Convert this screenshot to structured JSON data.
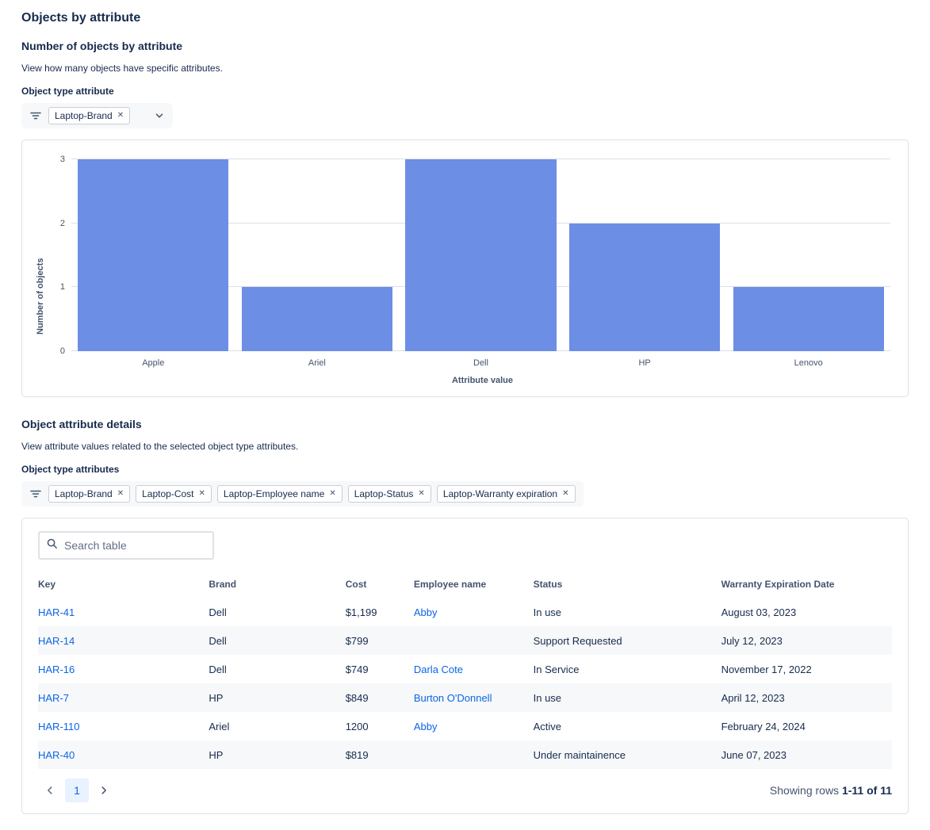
{
  "page": {
    "title": "Objects by attribute"
  },
  "colors": {
    "accent_blue": "#0C66E4",
    "bar_fill": "#6C8EE4",
    "selected_page_bg": "#E9F2FF",
    "zebra_row_bg": "#F7F8F9",
    "text_primary": "#172B4D",
    "text_secondary": "#44546F",
    "border": "#DFE1E6"
  },
  "icons": {
    "remove": "✕"
  },
  "section_chart": {
    "heading": "Number of objects by attribute",
    "description": "View how many objects have specific attributes.",
    "filter_label": "Object type attribute",
    "filter_tags": [
      {
        "label": "Laptop-Brand"
      }
    ]
  },
  "chart_data": {
    "type": "bar",
    "categories": [
      "Apple",
      "Ariel",
      "Dell",
      "HP",
      "Lenovo"
    ],
    "values": [
      3,
      1,
      3,
      2,
      1
    ],
    "title": "",
    "xlabel": "Attribute value",
    "ylabel": "Number of objects",
    "ylim": [
      0,
      3
    ],
    "yticks": [
      0,
      1,
      2,
      3
    ],
    "grid": true,
    "legend": false,
    "bar_color": "#6C8EE4"
  },
  "section_details": {
    "heading": "Object attribute details",
    "description": "View attribute values related to the selected object type attributes.",
    "filter_label": "Object type attributes",
    "filter_tags": [
      {
        "label": "Laptop-Brand"
      },
      {
        "label": "Laptop-Cost"
      },
      {
        "label": "Laptop-Employee name"
      },
      {
        "label": "Laptop-Status"
      },
      {
        "label": "Laptop-Warranty expiration"
      }
    ]
  },
  "table": {
    "search_placeholder": "Search table",
    "columns": [
      "Key",
      "Brand",
      "Cost",
      "Employee name",
      "Status",
      "Warranty Expiration Date"
    ],
    "link_columns": [
      0,
      3
    ],
    "rows": [
      [
        "HAR-41",
        "Dell",
        "$1,199",
        "Abby",
        "In use",
        "August 03, 2023"
      ],
      [
        "HAR-14",
        "Dell",
        "$799",
        "",
        "Support Requested",
        "July 12, 2023"
      ],
      [
        "HAR-16",
        "Dell",
        "$749",
        "Darla Cote",
        "In Service",
        "November 17, 2022"
      ],
      [
        "HAR-7",
        "HP",
        "$849",
        "Burton O'Donnell",
        "In use",
        "April 12, 2023"
      ],
      [
        "HAR-110",
        "Ariel",
        "1200",
        "Abby",
        "Active",
        "February 24, 2024"
      ],
      [
        "HAR-40",
        "HP",
        "$819",
        "",
        "Under maintainence",
        "June 07, 2023"
      ]
    ],
    "pagination": {
      "current_page": "1",
      "summary_prefix": "Showing rows",
      "summary_range": "1-11 of 11"
    }
  }
}
